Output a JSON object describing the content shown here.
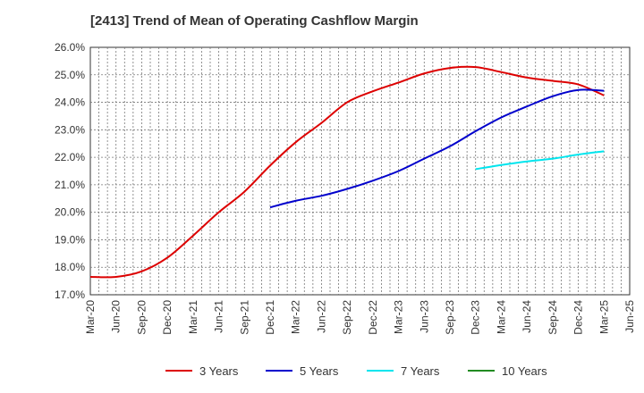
{
  "chart_data": {
    "type": "line",
    "title": "[2413]  Trend of Mean of Operating Cashflow Margin",
    "xlabel": "",
    "ylabel": "",
    "x_ticks": [
      "Mar-20",
      "Jun-20",
      "Sep-20",
      "Dec-20",
      "Mar-21",
      "Jun-21",
      "Sep-21",
      "Dec-21",
      "Mar-22",
      "Jun-22",
      "Sep-22",
      "Dec-22",
      "Mar-23",
      "Jun-23",
      "Sep-23",
      "Dec-23",
      "Mar-24",
      "Jun-24",
      "Sep-24",
      "Dec-24",
      "Mar-25",
      "Jun-25"
    ],
    "y_ticks": [
      "17.0%",
      "18.0%",
      "19.0%",
      "20.0%",
      "21.0%",
      "22.0%",
      "23.0%",
      "24.0%",
      "25.0%",
      "26.0%"
    ],
    "ylim": [
      17.0,
      26.0
    ],
    "grid": true,
    "legend_position": "bottom",
    "series": [
      {
        "name": "3 Years",
        "color": "#dd0000",
        "values": [
          [
            "Mar-20",
            17.65
          ],
          [
            "Jun-20",
            17.65
          ],
          [
            "Sep-20",
            17.85
          ],
          [
            "Dec-20",
            18.35
          ],
          [
            "Mar-21",
            19.15
          ],
          [
            "Jun-21",
            20.0
          ],
          [
            "Sep-21",
            20.75
          ],
          [
            "Dec-21",
            21.7
          ],
          [
            "Mar-22",
            22.55
          ],
          [
            "Jun-22",
            23.25
          ],
          [
            "Sep-22",
            24.0
          ],
          [
            "Dec-22",
            24.4
          ],
          [
            "Mar-23",
            24.72
          ],
          [
            "Jun-23",
            25.05
          ],
          [
            "Sep-23",
            25.25
          ],
          [
            "Dec-23",
            25.28
          ],
          [
            "Mar-24",
            25.1
          ],
          [
            "Jun-24",
            24.9
          ],
          [
            "Sep-24",
            24.78
          ],
          [
            "Dec-24",
            24.65
          ],
          [
            "Mar-25",
            24.25
          ]
        ]
      },
      {
        "name": "5 Years",
        "color": "#0000cc",
        "values": [
          [
            "Dec-21",
            20.18
          ],
          [
            "Mar-22",
            20.42
          ],
          [
            "Jun-22",
            20.6
          ],
          [
            "Sep-22",
            20.85
          ],
          [
            "Dec-22",
            21.15
          ],
          [
            "Mar-23",
            21.5
          ],
          [
            "Jun-23",
            21.95
          ],
          [
            "Sep-23",
            22.4
          ],
          [
            "Dec-23",
            22.95
          ],
          [
            "Mar-24",
            23.45
          ],
          [
            "Jun-24",
            23.85
          ],
          [
            "Sep-24",
            24.22
          ],
          [
            "Dec-24",
            24.45
          ],
          [
            "Mar-25",
            24.42
          ]
        ]
      },
      {
        "name": "7 Years",
        "color": "#00e5ee",
        "values": [
          [
            "Dec-23",
            21.57
          ],
          [
            "Mar-24",
            21.72
          ],
          [
            "Jun-24",
            21.85
          ],
          [
            "Sep-24",
            21.95
          ],
          [
            "Dec-24",
            22.1
          ],
          [
            "Mar-25",
            22.22
          ]
        ]
      },
      {
        "name": "10 Years",
        "color": "#228b22",
        "values": []
      }
    ]
  }
}
